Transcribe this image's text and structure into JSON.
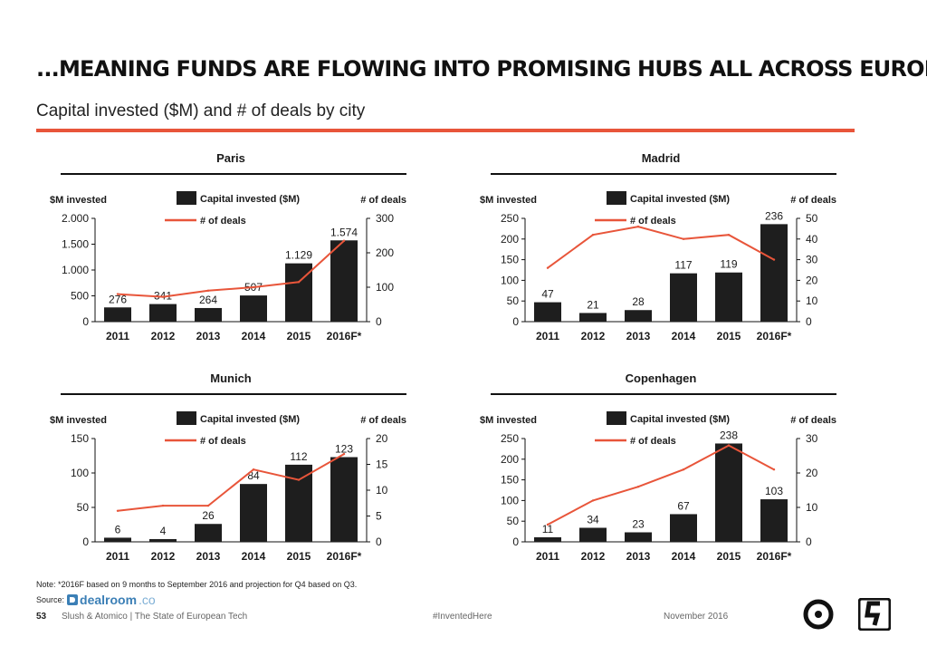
{
  "headline": "...MEANING FUNDS ARE FLOWING INTO PROMISING HUBS ALL ACROSS EUROPE",
  "subtitle": "Capital invested ($M) and # of deals by city",
  "colors": {
    "accent": "#e8553a",
    "bar": "#1e1e1e",
    "line": "#e8553a"
  },
  "chart_data": [
    {
      "type": "bar",
      "title": "Paris",
      "ylabel": "$M invested",
      "y2label": "# of deals",
      "legend": {
        "bar": "Capital invested ($M)",
        "line": "# of deals",
        "placement": "top-center"
      },
      "categories": [
        "2011",
        "2012",
        "2013",
        "2014",
        "2015",
        "2016F*"
      ],
      "series": [
        {
          "name": "Capital invested ($M)",
          "axis": "left",
          "values": [
            276,
            341,
            264,
            507,
            1129,
            1574
          ],
          "labels": [
            "276",
            "341",
            "264",
            "507",
            "1.129",
            "1.574"
          ]
        },
        {
          "name": "# of deals",
          "type": "line",
          "axis": "right",
          "values": [
            80,
            72,
            90,
            100,
            115,
            235
          ]
        }
      ],
      "ylim": [
        0,
        2000
      ],
      "yticks": [
        0,
        500,
        1000,
        1500,
        2000
      ],
      "ytick_labels": [
        "0",
        "500",
        "1.000",
        "1.500",
        "2.000"
      ],
      "y2lim": [
        0,
        300
      ],
      "y2ticks": [
        0,
        100,
        200,
        300
      ],
      "grid": false
    },
    {
      "type": "bar",
      "title": "Madrid",
      "ylabel": "$M invested",
      "y2label": "# of deals",
      "legend": {
        "bar": "Capital invested ($M)",
        "line": "# of deals",
        "placement": "top-center"
      },
      "categories": [
        "2011",
        "2012",
        "2013",
        "2014",
        "2015",
        "2016F*"
      ],
      "series": [
        {
          "name": "Capital invested ($M)",
          "axis": "left",
          "values": [
            47,
            21,
            28,
            117,
            119,
            236
          ],
          "labels": [
            "47",
            "21",
            "28",
            "117",
            "119",
            "236"
          ]
        },
        {
          "name": "# of deals",
          "type": "line",
          "axis": "right",
          "values": [
            26,
            42,
            46,
            40,
            42,
            30
          ]
        }
      ],
      "ylim": [
        0,
        250
      ],
      "yticks": [
        0,
        50,
        100,
        150,
        200,
        250
      ],
      "ytick_labels": [
        "0",
        "50",
        "100",
        "150",
        "200",
        "250"
      ],
      "y2lim": [
        0,
        50
      ],
      "y2ticks": [
        0,
        10,
        20,
        30,
        40,
        50
      ],
      "grid": false
    },
    {
      "type": "bar",
      "title": "Munich",
      "ylabel": "$M invested",
      "y2label": "# of deals",
      "legend": {
        "bar": "Capital invested ($M)",
        "line": "# of deals",
        "placement": "top-center"
      },
      "categories": [
        "2011",
        "2012",
        "2013",
        "2014",
        "2015",
        "2016F*"
      ],
      "series": [
        {
          "name": "Capital invested ($M)",
          "axis": "left",
          "values": [
            6,
            4,
            26,
            84,
            112,
            123
          ],
          "labels": [
            "6",
            "4",
            "26",
            "84",
            "112",
            "123"
          ]
        },
        {
          "name": "# of deals",
          "type": "line",
          "axis": "right",
          "values": [
            6,
            7,
            7,
            14,
            12,
            17
          ]
        }
      ],
      "ylim": [
        0,
        150
      ],
      "yticks": [
        0,
        50,
        100,
        150
      ],
      "ytick_labels": [
        "0",
        "50",
        "100",
        "150"
      ],
      "y2lim": [
        0,
        20
      ],
      "y2ticks": [
        0,
        5,
        10,
        15,
        20
      ],
      "grid": false
    },
    {
      "type": "bar",
      "title": "Copenhagen",
      "ylabel": "$M invested",
      "y2label": "# of deals",
      "legend": {
        "bar": "Capital invested ($M)",
        "line": "# of deals",
        "placement": "top-center"
      },
      "categories": [
        "2011",
        "2012",
        "2013",
        "2014",
        "2015",
        "2016F*"
      ],
      "series": [
        {
          "name": "Capital invested ($M)",
          "axis": "left",
          "values": [
            11,
            34,
            23,
            67,
            238,
            103
          ],
          "labels": [
            "11",
            "34",
            "23",
            "67",
            "238",
            "103"
          ]
        },
        {
          "name": "# of deals",
          "type": "line",
          "axis": "right",
          "values": [
            5,
            12,
            16,
            21,
            28,
            21
          ]
        }
      ],
      "ylim": [
        0,
        250
      ],
      "yticks": [
        0,
        50,
        100,
        150,
        200,
        250
      ],
      "ytick_labels": [
        "0",
        "50",
        "100",
        "150",
        "200",
        "250"
      ],
      "y2lim": [
        0,
        30
      ],
      "y2ticks": [
        0,
        10,
        20,
        30
      ],
      "grid": false
    }
  ],
  "footnote": "Note: *2016F based on 9 months to September 2016 and projection for Q4 based on Q3.",
  "source": {
    "label": "Source:",
    "logo_name": "dealroom",
    "logo_tld": ".co",
    "icon": "dealroom-logo-icon"
  },
  "footer": {
    "page_number": "53",
    "publication": "Slush & Atomico  |  The State of European Tech",
    "hashtag": "#InventedHere",
    "date": "November 2016"
  },
  "logos": {
    "atomico": "atomico-logo-icon",
    "slush": "slush-logo-icon"
  }
}
